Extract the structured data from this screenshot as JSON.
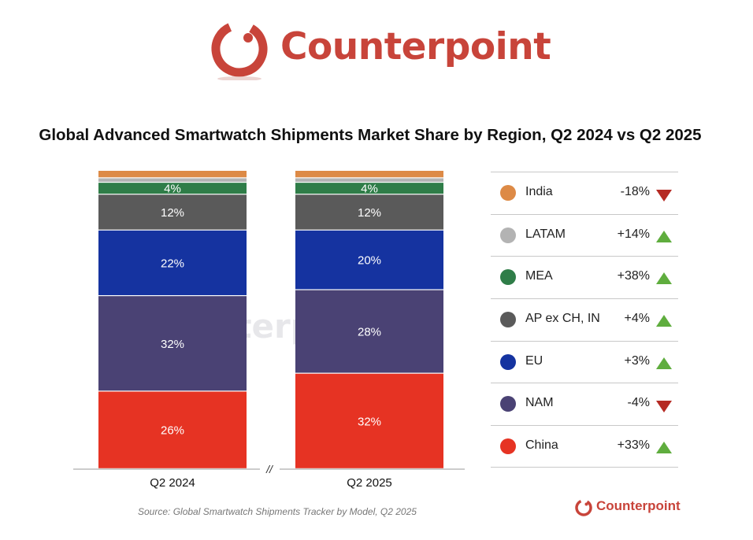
{
  "brand": {
    "name": "Counterpoint",
    "color": "#c8443a"
  },
  "title": "Global Advanced Smartwatch Shipments Market Share by Region, Q2 2024 vs Q2 2025",
  "source": "Source: Global Smartwatch Shipments Tracker by Model, Q2 2025",
  "axis_break_label": "//",
  "chart_data": {
    "type": "bar",
    "stacked": true,
    "percent": true,
    "categories": [
      "Q2 2024",
      "Q2 2025"
    ],
    "ylim": [
      0,
      100
    ],
    "series": [
      {
        "name": "China",
        "color": "#e63323",
        "values": [
          26,
          32
        ],
        "labels": [
          "26%",
          "32%"
        ]
      },
      {
        "name": "NAM",
        "color": "#4a4274",
        "values": [
          32,
          28
        ],
        "labels": [
          "32%",
          "28%"
        ]
      },
      {
        "name": "EU",
        "color": "#1533a0",
        "values": [
          22,
          20
        ],
        "labels": [
          "22%",
          "20%"
        ]
      },
      {
        "name": "AP ex CH, IN",
        "color": "#5a5a5a",
        "values": [
          12,
          12
        ],
        "labels": [
          "12%",
          "12%"
        ]
      },
      {
        "name": "MEA",
        "color": "#2f7d48",
        "values": [
          4,
          4
        ],
        "labels": [
          "4%",
          "4%"
        ]
      },
      {
        "name": "LATAM",
        "color": "#b3b3b3",
        "values": [
          1.5,
          1.5
        ],
        "labels": [
          "",
          ""
        ]
      },
      {
        "name": "India",
        "color": "#dd8a46",
        "values": [
          2.5,
          2.5
        ],
        "labels": [
          "",
          ""
        ]
      }
    ],
    "legend": {
      "placement": "right",
      "entries": [
        {
          "name": "India",
          "color": "#dd8a46",
          "change": "-18%",
          "direction": "down"
        },
        {
          "name": "LATAM",
          "color": "#b3b3b3",
          "change": "+14%",
          "direction": "up"
        },
        {
          "name": "MEA",
          "color": "#2f7d48",
          "change": "+38%",
          "direction": "up"
        },
        {
          "name": "AP ex CH, IN",
          "color": "#5a5a5a",
          "change": "+4%",
          "direction": "up"
        },
        {
          "name": "EU",
          "color": "#1533a0",
          "change": "+3%",
          "direction": "up"
        },
        {
          "name": "NAM",
          "color": "#4a4274",
          "change": "-4%",
          "direction": "down"
        },
        {
          "name": "China",
          "color": "#e63323",
          "change": "+33%",
          "direction": "up"
        }
      ]
    },
    "grid": false
  }
}
